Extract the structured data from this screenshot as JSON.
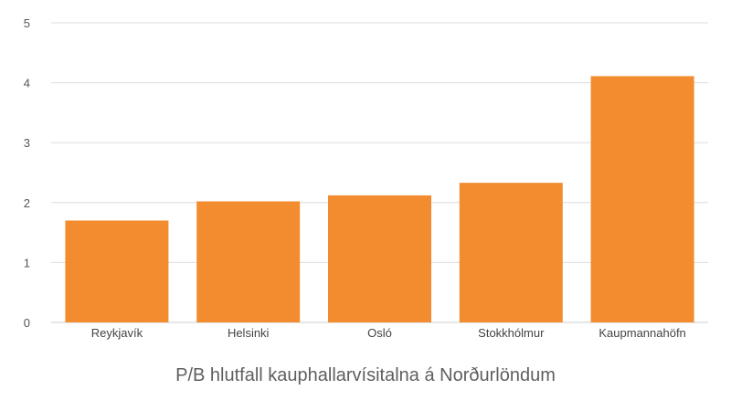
{
  "chart_data": {
    "type": "bar",
    "title": "P/B hlutfall kauphallarvísitalna á Norðurlöndum",
    "categories": [
      "Reykjavík",
      "Helsinki",
      "Osló",
      "Stokkhólmur",
      "Kaupmannahöfn"
    ],
    "values": [
      1.7,
      2.02,
      2.12,
      2.33,
      4.11
    ],
    "ylim": [
      0,
      5
    ],
    "yticks": [
      0,
      1,
      2,
      3,
      4,
      5
    ],
    "grid": true,
    "legend": "none",
    "bar_color": "#f28c2e",
    "grid_color": "#dddddd"
  }
}
